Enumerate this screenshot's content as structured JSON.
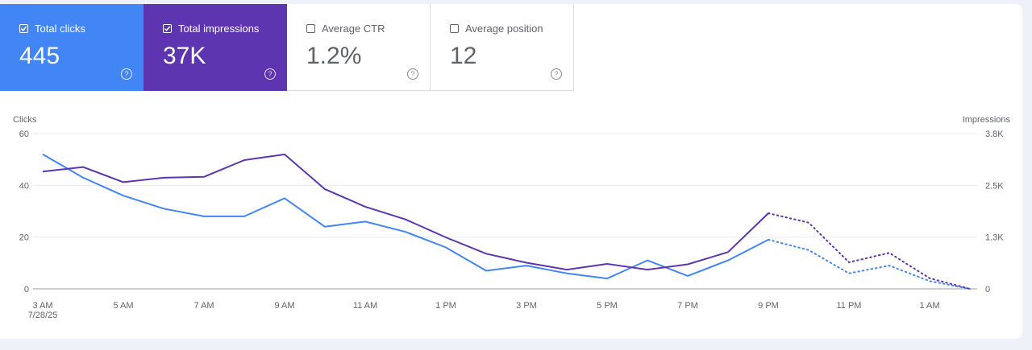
{
  "metrics": [
    {
      "label": "Total clicks",
      "value": "445",
      "checked": true
    },
    {
      "label": "Total impressions",
      "value": "37K",
      "checked": true
    },
    {
      "label": "Average CTR",
      "value": "1.2%",
      "checked": false
    },
    {
      "label": "Average position",
      "value": "12",
      "checked": false
    }
  ],
  "help_glyph": "?",
  "colors": {
    "clicks": "#4285f4",
    "impressions": "#5e35b1"
  },
  "chart_data": {
    "type": "line",
    "left_axis": {
      "title": "Clicks",
      "ticks": [
        "0",
        "20",
        "40",
        "60"
      ],
      "range": [
        0,
        60
      ]
    },
    "right_axis": {
      "title": "Impressions",
      "ticks": [
        "0",
        "1.3K",
        "2.5K",
        "3.8K"
      ],
      "range": [
        0,
        3800
      ]
    },
    "x_labels": [
      "3 AM",
      "5 AM",
      "7 AM",
      "9 AM",
      "11 AM",
      "1 PM",
      "3 PM",
      "5 PM",
      "7 PM",
      "9 PM",
      "11 PM",
      "1 AM"
    ],
    "x_sublabel": "7/28/25",
    "x_hours": [
      "3 AM",
      "4 AM",
      "5 AM",
      "6 AM",
      "7 AM",
      "8 AM",
      "9 AM",
      "10 AM",
      "11 AM",
      "12 PM",
      "1 PM",
      "2 PM",
      "3 PM",
      "4 PM",
      "5 PM",
      "6 PM",
      "7 PM",
      "8 PM",
      "9 PM",
      "10 PM",
      "11 PM",
      "12 AM",
      "1 AM",
      "2 AM"
    ],
    "partial_from_index": 18,
    "grid": true,
    "series": [
      {
        "name": "Clicks",
        "axis": "left",
        "values": [
          52,
          43,
          36,
          31,
          28,
          28,
          35,
          24,
          26,
          22,
          16,
          7,
          9,
          6,
          4,
          11,
          5,
          11,
          19,
          15,
          6,
          9,
          3,
          0
        ]
      },
      {
        "name": "Impressions",
        "axis": "right",
        "values": [
          2870,
          2980,
          2610,
          2720,
          2740,
          3150,
          3290,
          2440,
          2010,
          1700,
          1260,
          860,
          640,
          470,
          610,
          470,
          600,
          900,
          1850,
          1620,
          650,
          880,
          260,
          0
        ]
      }
    ]
  }
}
